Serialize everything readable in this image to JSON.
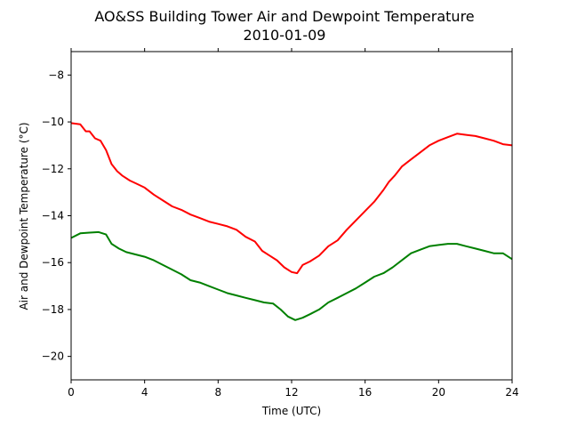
{
  "chart_data": {
    "type": "line",
    "title": "AO&SS Building Tower Air and Dewpoint Temperature",
    "subtitle": "2010-01-09",
    "xlabel": "Time (UTC)",
    "ylabel": "Air and Dewpoint Temperature (°C)",
    "xlim": [
      0,
      24
    ],
    "ylim": [
      -21,
      -7
    ],
    "x_ticks": [
      0,
      4,
      8,
      12,
      16,
      20,
      24
    ],
    "x_tick_labels": [
      "0",
      "4",
      "8",
      "12",
      "16",
      "20",
      "24"
    ],
    "y_ticks": [
      -20,
      -18,
      -16,
      -14,
      -12,
      -10,
      -8
    ],
    "y_tick_labels": [
      "−20",
      "−18",
      "−16",
      "−14",
      "−12",
      "−10",
      "−8"
    ],
    "grid": false,
    "series": [
      {
        "color": "#ff0000",
        "x": [
          0,
          0.5,
          0.8,
          1,
          1.3,
          1.6,
          1.9,
          2.2,
          2.5,
          2.8,
          3.2,
          3.6,
          4,
          4.5,
          5,
          5.5,
          6,
          6.5,
          7,
          7.5,
          8,
          8.5,
          9,
          9.5,
          10,
          10.4,
          10.8,
          11.2,
          11.6,
          12,
          12.3,
          12.6,
          13,
          13.5,
          14,
          14.5,
          15,
          15.5,
          16,
          16.5,
          17,
          17.3,
          17.6,
          18,
          18.5,
          19,
          19.5,
          20,
          20.5,
          21,
          21.5,
          22,
          22.5,
          23,
          23.5,
          24
        ],
        "y": [
          -10.05,
          -10.1,
          -10.4,
          -10.4,
          -10.7,
          -10.8,
          -11.2,
          -11.8,
          -12.1,
          -12.3,
          -12.5,
          -12.65,
          -12.8,
          -13.1,
          -13.35,
          -13.6,
          -13.75,
          -13.95,
          -14.1,
          -14.25,
          -14.35,
          -14.45,
          -14.6,
          -14.9,
          -15.1,
          -15.5,
          -15.7,
          -15.9,
          -16.2,
          -16.4,
          -16.45,
          -16.1,
          -15.95,
          -15.7,
          -15.3,
          -15.05,
          -14.6,
          -14.2,
          -13.8,
          -13.4,
          -12.9,
          -12.55,
          -12.3,
          -11.9,
          -11.6,
          -11.3,
          -11.0,
          -10.8,
          -10.65,
          -10.5,
          -10.55,
          -10.6,
          -10.7,
          -10.8,
          -10.95,
          -11.0
        ]
      },
      {
        "color": "#008000",
        "x": [
          0,
          0.5,
          1,
          1.5,
          1.9,
          2.2,
          2.6,
          3,
          3.5,
          4,
          4.5,
          5,
          5.5,
          6,
          6.5,
          7,
          7.5,
          8,
          8.5,
          9,
          9.5,
          10,
          10.5,
          11,
          11.4,
          11.8,
          12.2,
          12.6,
          13,
          13.5,
          14,
          14.5,
          15,
          15.5,
          16,
          16.5,
          17,
          17.5,
          18,
          18.5,
          19,
          19.5,
          20,
          20.5,
          21,
          21.5,
          22,
          22.5,
          23,
          23.5,
          24
        ],
        "y": [
          -14.95,
          -14.75,
          -14.72,
          -14.7,
          -14.8,
          -15.2,
          -15.4,
          -15.55,
          -15.65,
          -15.75,
          -15.9,
          -16.1,
          -16.3,
          -16.5,
          -16.75,
          -16.85,
          -17.0,
          -17.15,
          -17.3,
          -17.4,
          -17.5,
          -17.6,
          -17.7,
          -17.75,
          -18.0,
          -18.3,
          -18.45,
          -18.35,
          -18.2,
          -18.0,
          -17.7,
          -17.5,
          -17.3,
          -17.1,
          -16.85,
          -16.6,
          -16.45,
          -16.2,
          -15.9,
          -15.6,
          -15.45,
          -15.3,
          -15.25,
          -15.2,
          -15.2,
          -15.3,
          -15.4,
          -15.5,
          -15.6,
          -15.6,
          -15.85
        ]
      }
    ]
  }
}
